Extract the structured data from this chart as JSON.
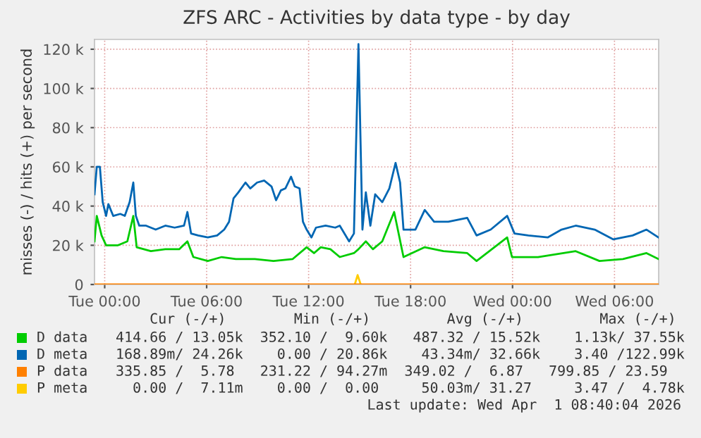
{
  "chart_data": {
    "type": "line",
    "title": "ZFS ARC - Activities by data type - by day",
    "ylabel": "misses (-) / hits (+) per second",
    "xlim": [
      "2026-03-30T23:24",
      "2026-04-01T08:36"
    ],
    "xticks": [
      {
        "value": "2026-03-31T00:00",
        "label": "Tue 00:00"
      },
      {
        "value": "2026-03-31T06:00",
        "label": "Tue 06:00"
      },
      {
        "value": "2026-03-31T12:00",
        "label": "Tue 12:00"
      },
      {
        "value": "2026-03-31T18:00",
        "label": "Tue 18:00"
      },
      {
        "value": "2026-04-01T00:00",
        "label": "Wed 00:00"
      },
      {
        "value": "2026-04-01T06:00",
        "label": "Wed 06:00"
      }
    ],
    "ylim": [
      0,
      125000
    ],
    "yticks": [
      0,
      {
        "value": 20000,
        "label": "20 k"
      },
      {
        "value": 40000,
        "label": "40 k"
      },
      {
        "value": 60000,
        "label": "60 k"
      },
      {
        "value": 80000,
        "label": "80 k"
      },
      {
        "value": 100000,
        "label": "100 k"
      },
      {
        "value": 120000,
        "label": "120 k"
      }
    ],
    "grid": true,
    "legend": "bottom",
    "marker": "none",
    "line_style": "solid",
    "series": [
      {
        "name": "D data",
        "color": "#00cc00",
        "x": [
          "2026-03-30T23:24",
          "2026-03-30T23:32",
          "2026-03-30T23:49",
          "2026-03-31T00:05",
          "2026-03-31T00:47",
          "2026-03-31T01:20",
          "2026-03-31T01:41",
          "2026-03-31T01:53",
          "2026-03-31T02:43",
          "2026-03-31T03:34",
          "2026-03-31T04:23",
          "2026-03-31T04:52",
          "2026-03-31T05:13",
          "2026-03-31T06:04",
          "2026-03-31T06:53",
          "2026-03-31T07:43",
          "2026-03-31T08:50",
          "2026-03-31T09:56",
          "2026-03-31T11:04",
          "2026-03-31T11:53",
          "2026-03-31T12:19",
          "2026-03-31T12:43",
          "2026-03-31T13:17",
          "2026-03-31T13:50",
          "2026-03-31T14:40",
          "2026-03-31T14:56",
          "2026-03-31T15:22",
          "2026-03-31T15:47",
          "2026-03-31T16:20",
          "2026-03-31T17:02",
          "2026-03-31T17:35",
          "2026-03-31T18:50",
          "2026-03-31T19:56",
          "2026-03-31T21:20",
          "2026-03-31T21:53",
          "2026-03-31T23:41",
          "2026-03-31T23:58",
          "2026-04-01T01:30",
          "2026-04-01T03:43",
          "2026-04-01T05:07",
          "2026-04-01T06:30",
          "2026-04-01T07:53",
          "2026-04-01T08:35"
        ],
        "values": [
          22000,
          35000,
          25000,
          20000,
          20000,
          22000,
          35000,
          19000,
          17000,
          18000,
          18000,
          22000,
          14000,
          12000,
          14000,
          13000,
          13000,
          12000,
          13000,
          19000,
          16000,
          19000,
          18000,
          14000,
          16000,
          18000,
          22000,
          18000,
          22000,
          37000,
          14000,
          19000,
          17000,
          16000,
          12000,
          24000,
          14000,
          14000,
          17000,
          12000,
          13000,
          16000,
          13000
        ]
      },
      {
        "name": "D meta",
        "color": "#0066b3",
        "x": [
          "2026-03-30T23:24",
          "2026-03-30T23:32",
          "2026-03-30T23:43",
          "2026-03-30T23:53",
          "2026-03-31T00:05",
          "2026-03-31T00:13",
          "2026-03-31T00:30",
          "2026-03-31T00:55",
          "2026-03-31T01:11",
          "2026-03-31T01:28",
          "2026-03-31T01:41",
          "2026-03-31T01:50",
          "2026-03-31T02:02",
          "2026-03-31T02:26",
          "2026-03-31T03:00",
          "2026-03-31T03:34",
          "2026-03-31T04:07",
          "2026-03-31T04:40",
          "2026-03-31T04:52",
          "2026-03-31T05:05",
          "2026-03-31T05:30",
          "2026-03-31T06:04",
          "2026-03-31T06:37",
          "2026-03-31T07:02",
          "2026-03-31T07:19",
          "2026-03-31T07:35",
          "2026-03-31T07:52",
          "2026-03-31T08:17",
          "2026-03-31T08:34",
          "2026-03-31T08:58",
          "2026-03-31T09:23",
          "2026-03-31T09:49",
          "2026-03-31T10:05",
          "2026-03-31T10:22",
          "2026-03-31T10:38",
          "2026-03-31T10:58",
          "2026-03-31T11:11",
          "2026-03-31T11:28",
          "2026-03-31T11:40",
          "2026-03-31T11:53",
          "2026-03-31T12:10",
          "2026-03-31T12:26",
          "2026-03-31T13:00",
          "2026-03-31T13:34",
          "2026-03-31T13:50",
          "2026-03-31T14:23",
          "2026-03-31T14:40",
          "2026-03-31T14:56",
          "2026-03-31T15:10",
          "2026-03-31T15:22",
          "2026-03-31T15:38",
          "2026-03-31T15:55",
          "2026-03-31T16:20",
          "2026-03-31T16:45",
          "2026-03-31T17:07",
          "2026-03-31T17:23",
          "2026-03-31T17:35",
          "2026-03-31T18:17",
          "2026-03-31T18:50",
          "2026-03-31T19:23",
          "2026-03-31T20:13",
          "2026-03-31T21:20",
          "2026-03-31T21:53",
          "2026-03-31T22:43",
          "2026-03-31T23:41",
          "2026-04-01T00:07",
          "2026-04-01T00:56",
          "2026-04-01T02:04",
          "2026-04-01T02:53",
          "2026-04-01T03:43",
          "2026-04-01T04:50",
          "2026-04-01T05:56",
          "2026-04-01T07:04",
          "2026-04-01T07:53",
          "2026-04-01T08:35"
        ],
        "values": [
          46000,
          60000,
          60000,
          42000,
          35000,
          41000,
          35000,
          36000,
          35000,
          42000,
          52000,
          35000,
          30000,
          30000,
          28000,
          30000,
          29000,
          30000,
          37000,
          26000,
          25000,
          24000,
          25000,
          28000,
          32000,
          44000,
          47000,
          52000,
          49000,
          52000,
          53000,
          50000,
          43000,
          48000,
          49000,
          55000,
          50000,
          49000,
          32000,
          28000,
          24000,
          29000,
          30000,
          29000,
          30000,
          22000,
          26000,
          122600,
          28000,
          47000,
          30000,
          46000,
          42000,
          49000,
          62000,
          52000,
          28000,
          28000,
          38000,
          32000,
          32000,
          34000,
          25000,
          28000,
          35000,
          26000,
          25000,
          24000,
          28000,
          30000,
          28000,
          23000,
          25000,
          28000,
          24000
        ]
      },
      {
        "name": "P data",
        "color": "#ff8000",
        "x": [
          "2026-03-30T23:24",
          "2026-04-01T08:35"
        ],
        "values": [
          0,
          0
        ]
      },
      {
        "name": "P meta",
        "color": "#ffcc00",
        "x": [
          "2026-03-31T14:43",
          "2026-03-31T14:53",
          "2026-03-31T15:04"
        ],
        "values": [
          0,
          4800,
          0
        ]
      }
    ],
    "annotations": [
      "    Cur (-/+)        Min (-/+)         Avg (-/+)         Max (-/+)",
      "414.66 / 13.05k  352.10 /  9.60k   487.32 / 15.52k    1.13k/ 37.55k",
      "168.89m/ 24.26k    0.00 / 20.86k    43.34m/ 32.66k    3.40 /122.99k",
      "335.85 /  5.78   231.22 / 94.27m  349.02 /  6.87   799.85 / 23.59",
      "  0.00 /  7.11m    0.00 /  0.00     50.03m/ 31.27     3.47 /  4.78k",
      "Last update: Wed Apr  1 08:40:04 2026"
    ]
  }
}
